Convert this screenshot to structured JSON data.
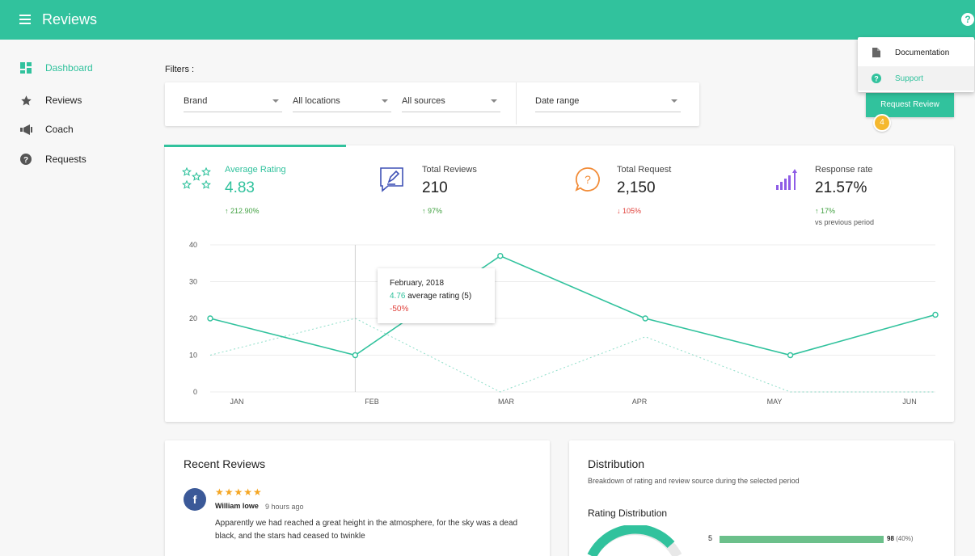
{
  "header": {
    "title": "Reviews",
    "menu_icon": "hamburger-icon",
    "help_icon": "help-icon"
  },
  "sidebar": {
    "items": [
      {
        "label": "Dashboard",
        "icon": "dashboard-icon",
        "active": true
      },
      {
        "label": "Reviews",
        "icon": "star-icon",
        "active": false
      },
      {
        "label": "Coach",
        "icon": "megaphone-icon",
        "active": false
      },
      {
        "label": "Requests",
        "icon": "question-icon",
        "active": false
      }
    ]
  },
  "filters": {
    "label": "Filters :",
    "brand": "Brand",
    "locations": "All locations",
    "sources": "All sources",
    "date_range": "Date range"
  },
  "help_menu": {
    "items": [
      {
        "label": "Documentation",
        "icon": "document-icon"
      },
      {
        "label": "Support",
        "icon": "support-icon"
      }
    ]
  },
  "request_button": {
    "label": "Request Review",
    "badge": "4"
  },
  "stats": [
    {
      "label": "Average Rating",
      "value": "4.83",
      "change": "↑ 212.90%",
      "trend": "up",
      "icon": "stars-icon",
      "accent": "#31c29d"
    },
    {
      "label": "Total Reviews",
      "value": "210",
      "change": "↑ 97%",
      "trend": "up",
      "icon": "review-edit-icon",
      "accent": "#3f51b5"
    },
    {
      "label": "Total Request",
      "value": "2,150",
      "change": "↓ 105%",
      "trend": "down",
      "icon": "question-bubble-icon",
      "accent": "#f28c38"
    },
    {
      "label": "Response rate",
      "value": "21.57%",
      "change": "↑ 17%",
      "sub": "vs previous period",
      "trend": "up",
      "icon": "bar-growth-icon",
      "accent": "#8e5ce6"
    }
  ],
  "chart_data": {
    "type": "line",
    "categories": [
      "JAN",
      "FEB",
      "MAR",
      "APR",
      "MAY",
      "JUN"
    ],
    "series": [
      {
        "values": [
          20,
          10,
          37,
          20,
          10,
          21
        ],
        "color": "#31c29d",
        "style": "solid"
      },
      {
        "values": [
          10,
          20,
          0,
          15,
          0,
          0
        ],
        "color": "#31c29d",
        "style": "dotted"
      }
    ],
    "ylim": [
      0,
      40
    ],
    "yticks": [
      0,
      10,
      20,
      30,
      40
    ],
    "grid": true
  },
  "tooltip": {
    "title": "February, 2018",
    "value": "4.76",
    "value_label": " average rating (5)",
    "change": "-50%"
  },
  "recent_reviews": {
    "title": "Recent Reviews",
    "items": [
      {
        "source_icon": "facebook-icon",
        "stars": "★★★★★",
        "author": "William lowe",
        "time": "9 hours ago",
        "text": "Apparently we had reached a great height in the atmosphere, for the sky was a dead black, and the stars had ceased to twinkle"
      }
    ]
  },
  "distribution": {
    "title": "Distribution",
    "subtitle": "Breakdown of rating and review source during the selected period",
    "rating_title": "Rating Distribution",
    "rows": [
      {
        "label": "5",
        "value": "98",
        "pct": "(40%)",
        "fraction": 0.4,
        "color": "#6cc08b"
      }
    ]
  }
}
